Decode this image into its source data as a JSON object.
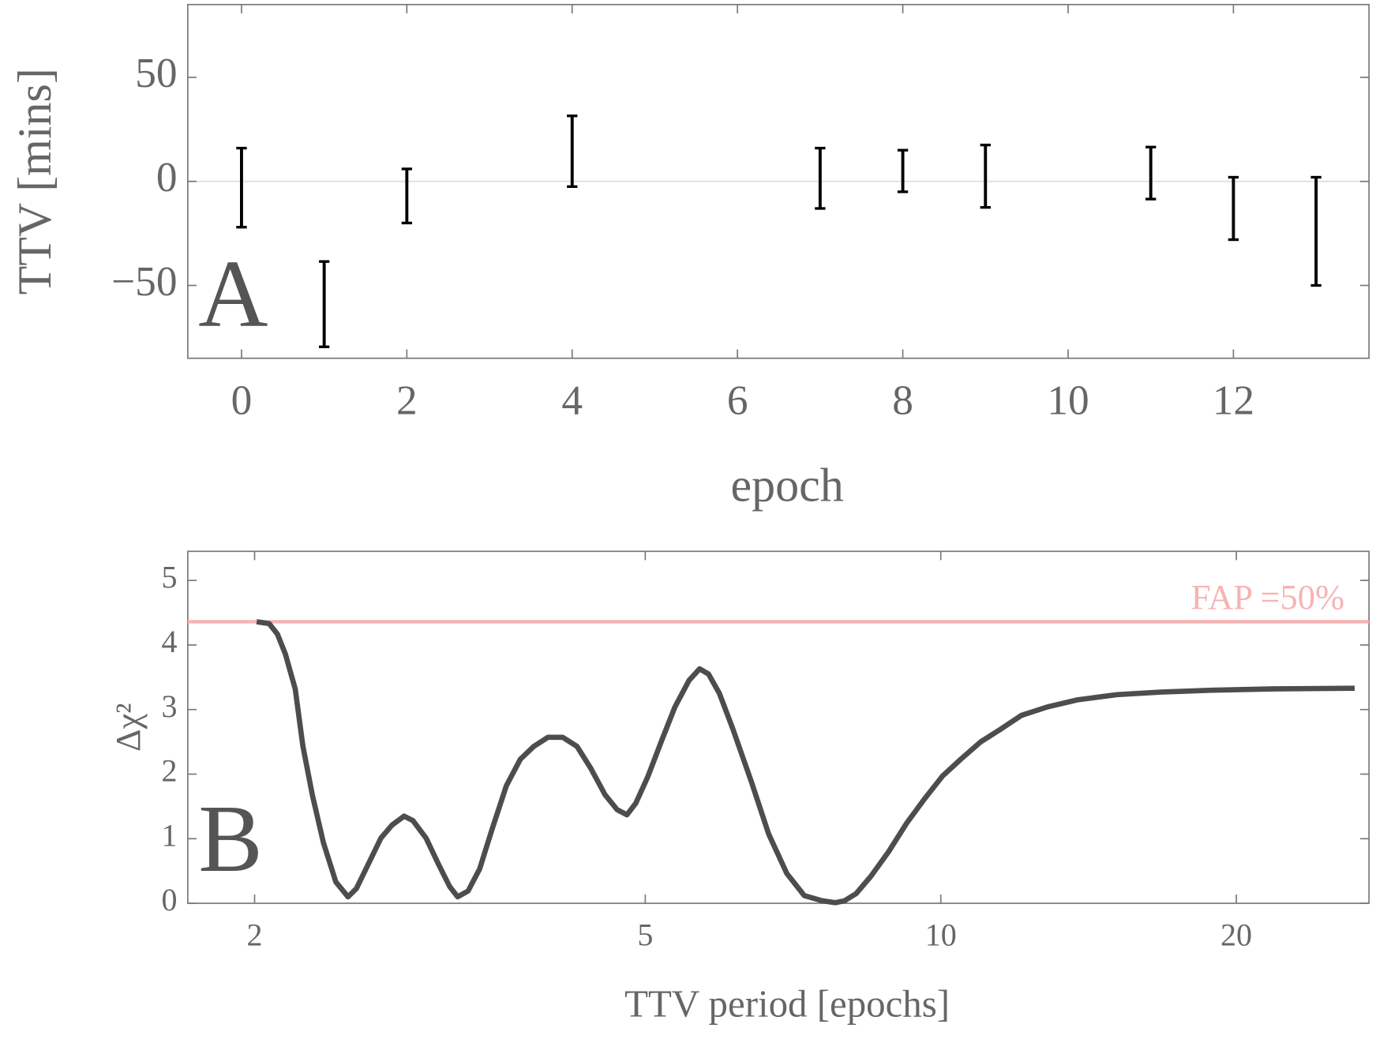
{
  "chart_data": [
    {
      "type": "errorbar",
      "xlabel": "epoch",
      "ylabel": "TTV [mins]",
      "annotation": "A",
      "x": [
        0,
        1,
        2,
        4,
        7,
        8,
        9,
        11,
        12,
        13
      ],
      "values": [
        -3,
        -59,
        -7,
        14.5,
        1.5,
        5,
        2.5,
        4,
        -13,
        -24
      ],
      "errors": [
        19,
        20.5,
        13,
        17,
        14.5,
        10,
        15,
        12.5,
        15,
        26
      ],
      "color": "#000000",
      "xlim": [
        -0.65,
        13.64
      ],
      "ylim": [
        -85,
        85
      ],
      "xticks": [
        0,
        2,
        4,
        6,
        8,
        10,
        12
      ],
      "yticks": [
        {
          "value": -50,
          "label": "−50"
        },
        0,
        50
      ]
    },
    {
      "type": "line",
      "xlabel": "TTV period [epochs]",
      "ylabel": "Δχ²",
      "annotation": "B",
      "xscale": "log",
      "x": [
        2.01,
        2.07,
        2.11,
        2.15,
        2.2,
        2.24,
        2.29,
        2.35,
        2.42,
        2.49,
        2.54,
        2.61,
        2.69,
        2.76,
        2.84,
        2.9,
        2.99,
        3.08,
        3.16,
        3.22,
        3.3,
        3.39,
        3.49,
        3.61,
        3.73,
        3.85,
        3.98,
        4.12,
        4.26,
        4.4,
        4.55,
        4.68,
        4.79,
        4.89,
        5.03,
        5.19,
        5.36,
        5.54,
        5.68,
        5.8,
        5.95,
        6.14,
        6.41,
        6.68,
        6.97,
        7.26,
        7.57,
        7.81,
        7.98,
        8.2,
        8.49,
        8.85,
        9.23,
        9.63,
        10.04,
        10.48,
        10.98,
        11.52,
        12.08,
        12.84,
        13.78,
        15.12,
        16.74,
        18.89,
        21.8,
        26.4
      ],
      "values": [
        4.36,
        4.33,
        4.17,
        3.86,
        3.32,
        2.43,
        1.68,
        0.94,
        0.33,
        0.1,
        0.23,
        0.6,
        1.01,
        1.21,
        1.35,
        1.28,
        1.01,
        0.6,
        0.26,
        0.1,
        0.19,
        0.53,
        1.14,
        1.82,
        2.23,
        2.43,
        2.57,
        2.57,
        2.43,
        2.09,
        1.68,
        1.45,
        1.37,
        1.55,
        1.96,
        2.5,
        3.04,
        3.45,
        3.63,
        3.55,
        3.25,
        2.7,
        1.89,
        1.07,
        0.46,
        0.12,
        0.04,
        0.01,
        0.04,
        0.15,
        0.42,
        0.8,
        1.24,
        1.62,
        1.97,
        2.23,
        2.5,
        2.7,
        2.91,
        3.04,
        3.15,
        3.23,
        3.27,
        3.3,
        3.32,
        3.33
      ],
      "color": "#4d4d4d",
      "threshold": {
        "value": 4.36,
        "label": "FAP =50%",
        "color": "#f7b3b3"
      },
      "xlim": [
        1.71,
        27.3
      ],
      "ylim": [
        0,
        5.45
      ],
      "xticks": [
        2,
        5,
        10,
        20
      ],
      "yticks": [
        0,
        1,
        2,
        3,
        4,
        5
      ]
    }
  ]
}
